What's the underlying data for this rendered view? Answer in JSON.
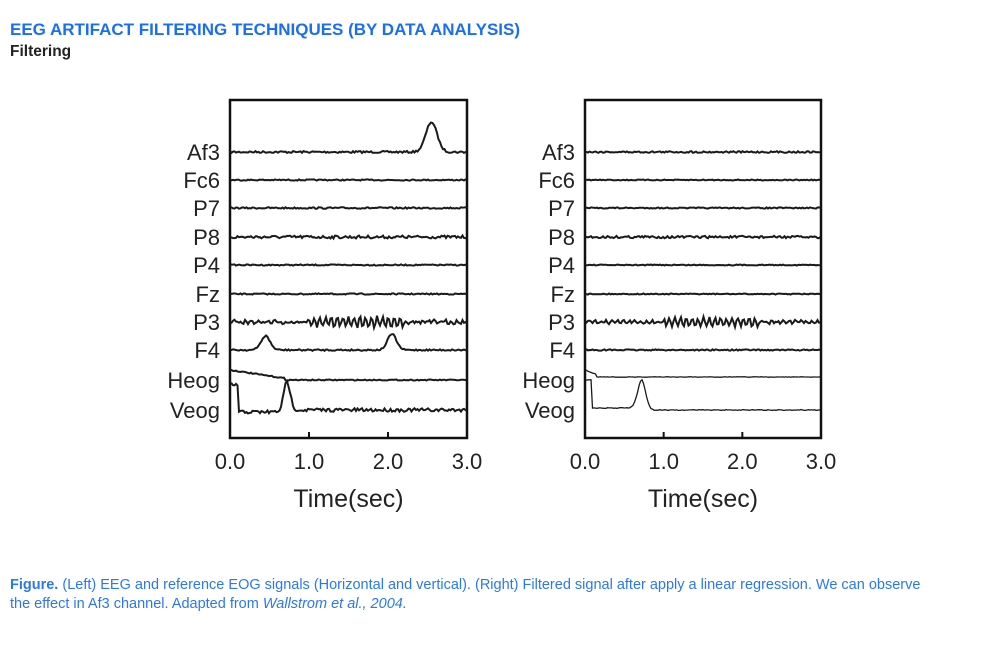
{
  "header": {
    "title": "EEG ARTIFACT FILTERING TECHNIQUES (BY DATA ANALYSIS)",
    "subtitle": "Filtering"
  },
  "figure": {
    "channels": [
      "Af3",
      "Fc6",
      "P7",
      "P8",
      "P4",
      "Fz",
      "P3",
      "F4",
      "Heog",
      "Veog"
    ],
    "x_ticks": [
      "0.0",
      "1.0",
      "2.0",
      "3.0"
    ],
    "xlabel": "Time(sec)",
    "panels": [
      "left",
      "right"
    ]
  },
  "caption": {
    "lead": "Figure.",
    "text": " (Left) EEG and reference EOG signals (Horizontal and vertical). (Right) Filtered signal after apply a linear regression. We can observe the effect in Af3 channel. Adapted from ",
    "cite": "Wallstrom et al., 2004."
  },
  "colors": {
    "accent": "#1a6ff0",
    "trace": "#1a1a1a"
  }
}
